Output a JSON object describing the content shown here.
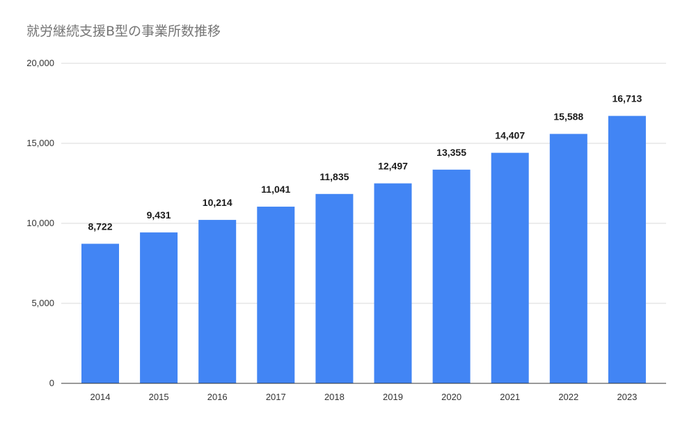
{
  "chart_data": {
    "type": "bar",
    "title": "就労継続支援B型の事業所数推移",
    "categories": [
      "2014",
      "2015",
      "2016",
      "2017",
      "2018",
      "2019",
      "2020",
      "2021",
      "2022",
      "2023"
    ],
    "series": [
      {
        "values": [
          8722,
          9431,
          10214,
          11041,
          11835,
          12497,
          13355,
          14407,
          15588,
          16713
        ],
        "value_labels": [
          "8,722",
          "9,431",
          "10,214",
          "11,041",
          "11,835",
          "12,497",
          "13,355",
          "14,407",
          "15,588",
          "16,713"
        ],
        "color": "#4285f4"
      }
    ],
    "yticks": [
      0,
      5000,
      10000,
      15000,
      20000
    ],
    "ytick_labels": [
      "0",
      "5,000",
      "10,000",
      "15,000",
      "20,000"
    ],
    "ylim": [
      0,
      20000
    ],
    "xlabel": "",
    "ylabel": "",
    "grid": true,
    "legend": "none",
    "gridline_color": "#d9d9d9",
    "axis_color": "#333333"
  }
}
